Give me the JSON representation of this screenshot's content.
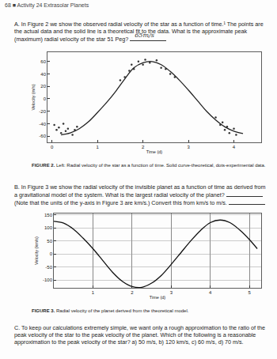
{
  "header": "68 ■ Activity 24 Extrasolar Planets",
  "part_a": {
    "text": "A. In Figure 2 we show the observed radial velocity of the star as a function of time.¹ The points are the actual data and the solid line is a theoretical fit to the data. What is the approximate peak (maximum) radial velocity of the star 51 Peg?",
    "handwritten_answer": "65m/s"
  },
  "part_b": {
    "text": "B. In Figure 3 we show the radial velocity of the invisible planet as a function of time as derived from a gravitational model of the system. What is the largest radial velocity of the planet?",
    "note": "(Note that the units of the y-axis in Figure 3 are km/s.) Convert this from km/s to m/s."
  },
  "part_c": {
    "text": "C. To keep our calculations extremely simple, we want only a rough approximation to the ratio of the peak velocity of the star to the peak velocity of the planet. Which of the following is a reasonable approximation to the peak velocity of the star? a) 50 m/s, b) 120 km/s, c) 60 m/s, d) 70 m/s."
  },
  "chart_data": [
    {
      "type": "line",
      "caption_label": "FIGURE 2.",
      "caption": "Left: Radial velocity of the star as a function of time. Solid curve-theoretical, dots-experimental data.",
      "x_label": "Time (d)",
      "y_label": "Velocity (m/s)",
      "xlim": [
        -0.1,
        4.6
      ],
      "xticks": [
        0,
        1,
        2,
        3,
        4
      ],
      "ylim": [
        -70,
        75
      ],
      "yticks": [
        -60,
        -40,
        -20,
        0,
        20,
        40,
        60
      ],
      "grid": false,
      "series": [
        {
          "type": "line",
          "color": "#222222",
          "line_style": "solid",
          "x": [
            0.2,
            0.4,
            0.6,
            0.8,
            1.0,
            1.2,
            1.4,
            1.6,
            1.8,
            2.0,
            2.2,
            2.4,
            2.6,
            2.8,
            3.0,
            3.2,
            3.4,
            3.6,
            3.8,
            4.0,
            4.2
          ],
          "values": [
            -58,
            -55,
            -48,
            -37,
            -22,
            -6,
            12,
            32,
            50,
            58,
            60,
            55,
            44,
            30,
            14,
            -3,
            -20,
            -34,
            -45,
            -52,
            -56
          ]
        },
        {
          "type": "scatter",
          "color": "#333333",
          "marker": "dot",
          "x": [
            0.05,
            0.1,
            0.15,
            0.2,
            0.25,
            0.3,
            0.35,
            0.45,
            0.5,
            0.55,
            1.5,
            1.6,
            1.7,
            1.75,
            1.8,
            1.9,
            2.0,
            2.05,
            2.15,
            2.3,
            2.4,
            2.5,
            2.6,
            2.7,
            3.6,
            3.7,
            3.75,
            3.8,
            3.85,
            3.9,
            4.0,
            4.05
          ],
          "values": [
            -42,
            -50,
            -46,
            -55,
            -40,
            -52,
            -48,
            -58,
            -50,
            -45,
            30,
            35,
            45,
            55,
            48,
            60,
            55,
            63,
            58,
            62,
            50,
            48,
            40,
            35,
            -30,
            -42,
            -38,
            -50,
            -45,
            -55,
            -48,
            -58
          ]
        }
      ]
    },
    {
      "type": "line",
      "caption_label": "FIGURE 3.",
      "caption": "Radial velocity of the planet derived from the theoretical model.",
      "x_label": "Time (d)",
      "y_label": "Velocity (km/s)",
      "xlim": [
        0,
        5.3
      ],
      "xticks": [
        1,
        2,
        3,
        4,
        5
      ],
      "ylim": [
        -130,
        155
      ],
      "yticks": [
        -100,
        -50,
        0,
        50,
        100,
        150
      ],
      "grid": true,
      "series": [
        {
          "type": "line",
          "color": "#111111",
          "line_style": "solid",
          "x": [
            0,
            0.25,
            0.5,
            0.75,
            1,
            1.25,
            1.5,
            1.75,
            2,
            2.25,
            2.5,
            2.75,
            3,
            3.25,
            3.5,
            3.75,
            4,
            4.25,
            4.5,
            4.75,
            5,
            5.2
          ],
          "values": [
            125,
            118,
            95,
            60,
            20,
            -25,
            -70,
            -105,
            -125,
            -128,
            -112,
            -82,
            -40,
            5,
            50,
            90,
            120,
            130,
            120,
            92,
            55,
            20
          ]
        }
      ]
    }
  ]
}
